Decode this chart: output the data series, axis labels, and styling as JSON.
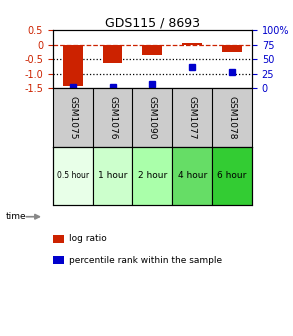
{
  "title": "GDS115 / 8693",
  "samples": [
    "GSM1075",
    "GSM1076",
    "GSM1090",
    "GSM1077",
    "GSM1078"
  ],
  "time_labels": [
    "0.5 hour",
    "1 hour",
    "2 hour",
    "4 hour",
    "6 hour"
  ],
  "log_ratios": [
    -1.42,
    -0.62,
    -0.35,
    0.05,
    -0.25
  ],
  "percentile_ranks": [
    3,
    3,
    7,
    37,
    28
  ],
  "bar_color": "#cc2200",
  "dot_color": "#0000cc",
  "ylim_left": [
    -1.5,
    0.5
  ],
  "ylim_right": [
    0,
    100
  ],
  "yticks_left": [
    0.5,
    0.0,
    -0.5,
    -1.0,
    -1.5
  ],
  "yticks_right": [
    100,
    75,
    50,
    25,
    0
  ],
  "time_colors": [
    "#e8ffe8",
    "#ccffcc",
    "#aaffaa",
    "#66dd66",
    "#33cc33"
  ],
  "dashed_line_color": "#cc2200",
  "dotted_line_color": "#000000",
  "legend_log_ratio": "log ratio",
  "legend_percentile": "percentile rank within the sample",
  "bg_color": "#ffffff",
  "sample_bg_color": "#cccccc"
}
